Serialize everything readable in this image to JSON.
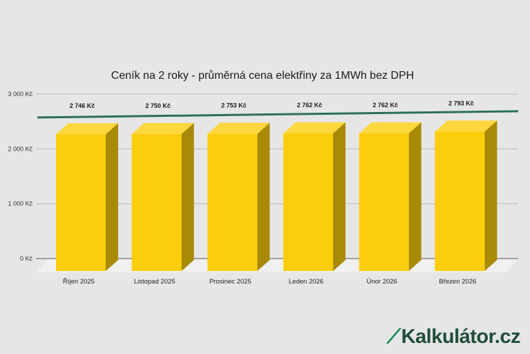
{
  "chart_data": {
    "type": "bar",
    "title": "Ceník na 2 roky - průměrná cena elektřiny za 1MWh bez DPH",
    "categories": [
      "Říjen 2025",
      "Listopad 2025",
      "Prosinec 2025",
      "Leden 2026",
      "Únor 2026",
      "Březen 2026"
    ],
    "series": [
      {
        "values": [
          2746,
          2750,
          2753,
          2762,
          2762,
          2793
        ],
        "data_labels": [
          "2 746 Kč",
          "2 750 Kč",
          "2 753 Kč",
          "2 762 Kč",
          "2 762 Kč",
          "2 793 Kč"
        ]
      }
    ],
    "y_ticks": [
      0,
      1000,
      2000,
      3000
    ],
    "y_tick_labels": [
      "0 Kč",
      "1 000 Kč",
      "2 000 Kč",
      "3 000 Kč"
    ],
    "ylim": [
      0,
      3000
    ],
    "grid": true,
    "trendline": true,
    "style_3d": true,
    "colors": {
      "bar_front": "#fccd0b",
      "bar_top": "#fdd73d",
      "bar_side": "#a98a07",
      "trendline": "#2c6e5d",
      "grid": "#b8b8b8",
      "floor": "#f0f0f0"
    }
  },
  "brand": {
    "mark": "≁",
    "name": "Kalkulátor.cz",
    "colors": {
      "mark": "#178a4f",
      "text": "#1f4f3a"
    }
  }
}
